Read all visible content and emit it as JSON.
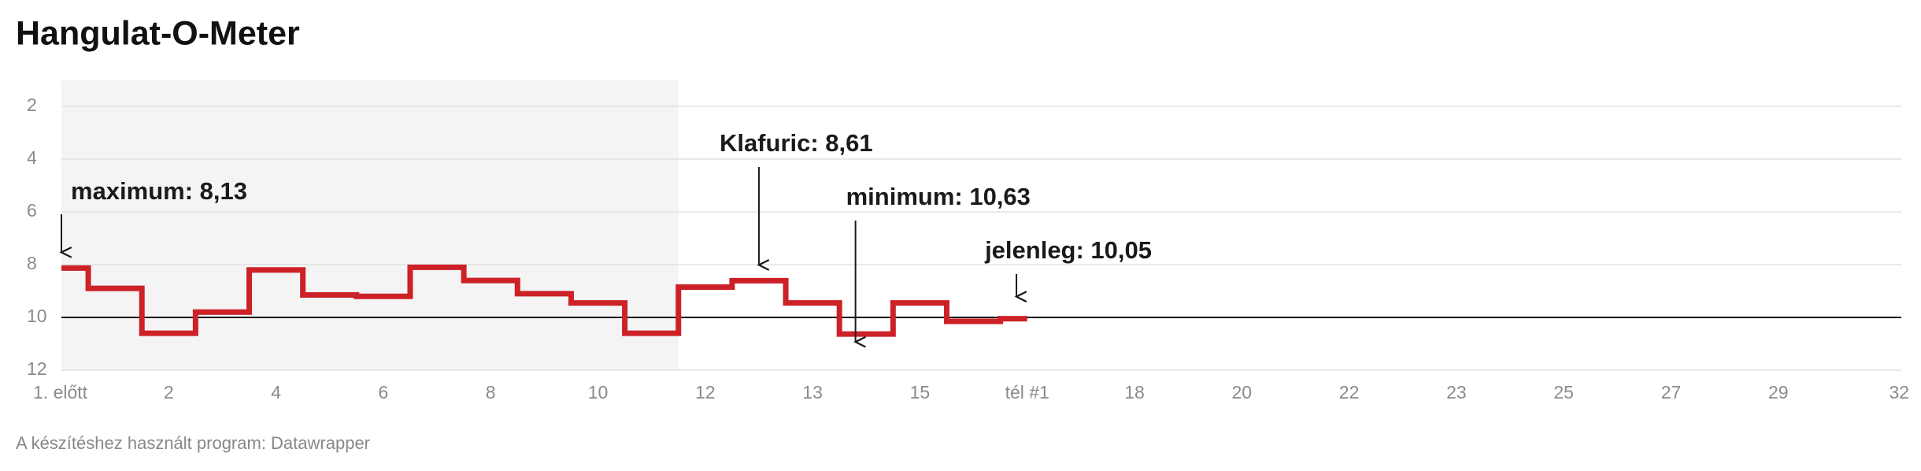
{
  "chart_data": {
    "type": "line",
    "step": true,
    "title": "Hangulat-O-Meter",
    "source": "A készítéshez használt program: Datawrapper",
    "categories": [
      "1. előtt",
      null,
      "2",
      null,
      "4",
      null,
      "6",
      null,
      "8",
      null,
      "10",
      null,
      "12",
      null,
      "13",
      null,
      "15",
      null,
      "tél #1",
      null,
      "18",
      null,
      "20",
      null,
      "22",
      null,
      "23",
      null,
      "25",
      null,
      "27",
      null,
      "29",
      null,
      "32"
    ],
    "series": [
      {
        "color": "#cc2127",
        "values": [
          8.13,
          8.9,
          10.6,
          9.8,
          8.2,
          9.15,
          9.2,
          8.1,
          8.6,
          9.1,
          9.45,
          10.6,
          8.85,
          8.61,
          9.45,
          10.63,
          9.45,
          10.15,
          10.05,
          null,
          null,
          null,
          null,
          null,
          null,
          null,
          null,
          null,
          null,
          null,
          null,
          null,
          null,
          null,
          null
        ]
      }
    ],
    "ylim": [
      1,
      12
    ],
    "yticks": [
      2,
      4,
      6,
      8,
      10,
      12
    ],
    "y_reversed": true,
    "grid": true,
    "reference_line": 10,
    "shaded_range": [
      0,
      11.5
    ],
    "annotations": [
      {
        "text": "maximum: 8,13",
        "x": 0,
        "y": 8.13
      },
      {
        "text": "Klafuric: 8,61",
        "x": 13,
        "y": 8.61
      },
      {
        "text": "minimum: 10,63",
        "x": 14.8,
        "y": 10.63
      },
      {
        "text": "jelenleg: 10,05",
        "x": 17.8,
        "y": 10.05
      }
    ]
  }
}
